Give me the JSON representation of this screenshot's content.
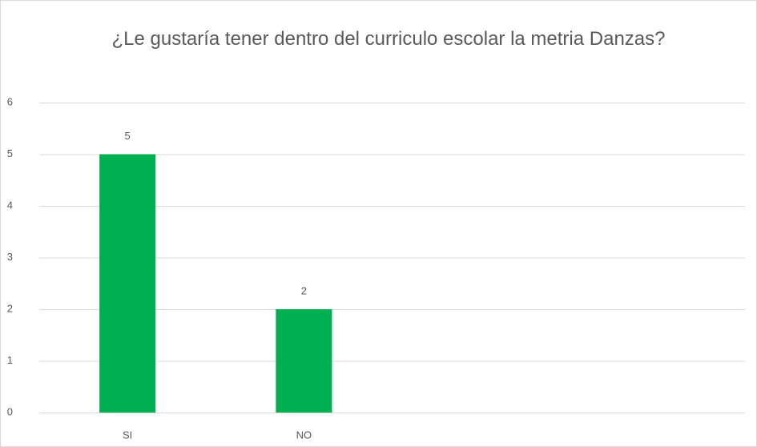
{
  "chart_data": {
    "type": "bar",
    "title": "¿Le gustaría tener dentro del curriculo escolar la metria Danzas?",
    "categories": [
      "SI",
      "NO"
    ],
    "values": [
      5,
      2
    ],
    "color": "#00b050",
    "ylim": [
      0,
      6
    ],
    "yticks": [
      0,
      1,
      2,
      3,
      4,
      5,
      6
    ],
    "grid": true
  }
}
